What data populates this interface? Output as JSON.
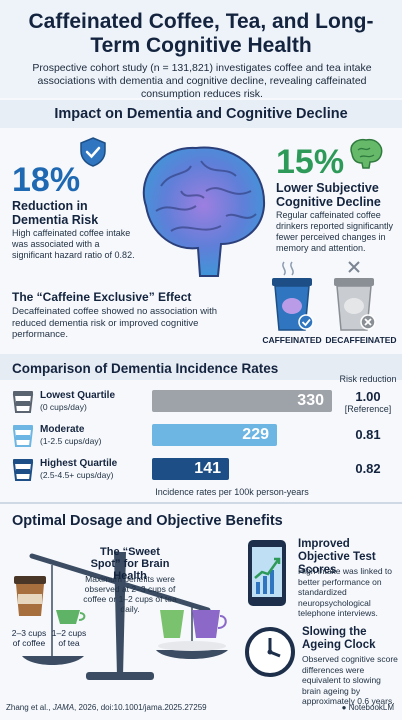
{
  "header": {
    "title": "Caffeinated Coffee, Tea, and Long-Term Cognitive Health",
    "intro": "Prospective cohort study (n = 131,821) investigates coffee and tea intake associations with dementia and cognitive decline, revealing caffeinated consumption reduces risk."
  },
  "impact": {
    "title": "Impact on Dementia and Cognitive Decline",
    "stat1": {
      "value": "18%",
      "label": "Reduction in Dementia Risk",
      "text": "High caffeinated coffee intake was associated with a significant hazard ratio of 0.82."
    },
    "stat2": {
      "value": "15%",
      "label": "Lower Subjective Cognitive Decline",
      "text": "Regular caffeinated coffee drinkers reported significantly fewer perceived changes in memory and attention."
    },
    "exclusive": {
      "title": "The “Caffeine Exclusive” Effect",
      "text": "Decaffeinated coffee showed no association with reduced dementia risk or improved cognitive performance."
    },
    "cup_caffeinated": "CAFFEINATED",
    "cup_decaffeinated": "DECAFFEINATED"
  },
  "comparison": {
    "title": "Comparison of Dementia Incidence Rates",
    "risk_header": "Risk reduction",
    "axis_caption": "Incidence rates per 100k person-years",
    "rows": [
      {
        "label": "Lowest Quartile",
        "sub": "(0 cups/day)",
        "value": 330,
        "value_text": "330",
        "risk": "1.00",
        "risk_sub": "[Reference]",
        "color": "#9ea3a9"
      },
      {
        "label": "Moderate",
        "sub": "(1-2.5 cups/day)",
        "value": 229,
        "value_text": "229",
        "risk": "0.81",
        "risk_sub": "",
        "color": "#6db6e3"
      },
      {
        "label": "Highest Quartile",
        "sub": "(2.5-4.5+ cups/day)",
        "value": 141,
        "value_text": "141",
        "risk": "0.82",
        "risk_sub": "",
        "color": "#1d4f86"
      }
    ]
  },
  "dosage": {
    "title": "Optimal Dosage and Objective Benefits",
    "sweet_title": "The “Sweet Spot” for Brain Health",
    "sweet_text": "Maximum benefits were observed at 2–3 cups of coffee or 1–2 cups of tea daily.",
    "cup_coffee": "2–3 cups of coffee",
    "cup_tea": "1–2 cups of tea",
    "benefit1": {
      "title": "Improved Objective Test Scores",
      "text": "High intake was linked to better performance on standardized neuropsychological telephone interviews."
    },
    "benefit2": {
      "title": "Slowing the Ageing Clock",
      "text": "Observed cognitive score differences were equivalent to slowing brain ageing by approximately 0.6 years."
    }
  },
  "footer": {
    "citation_pre": "Zhang et al., ",
    "citation_journal": "JAMA",
    "citation_post": ", 2026, doi:10.1001/jama.2025.27259",
    "brand": "NotebookLM"
  }
}
